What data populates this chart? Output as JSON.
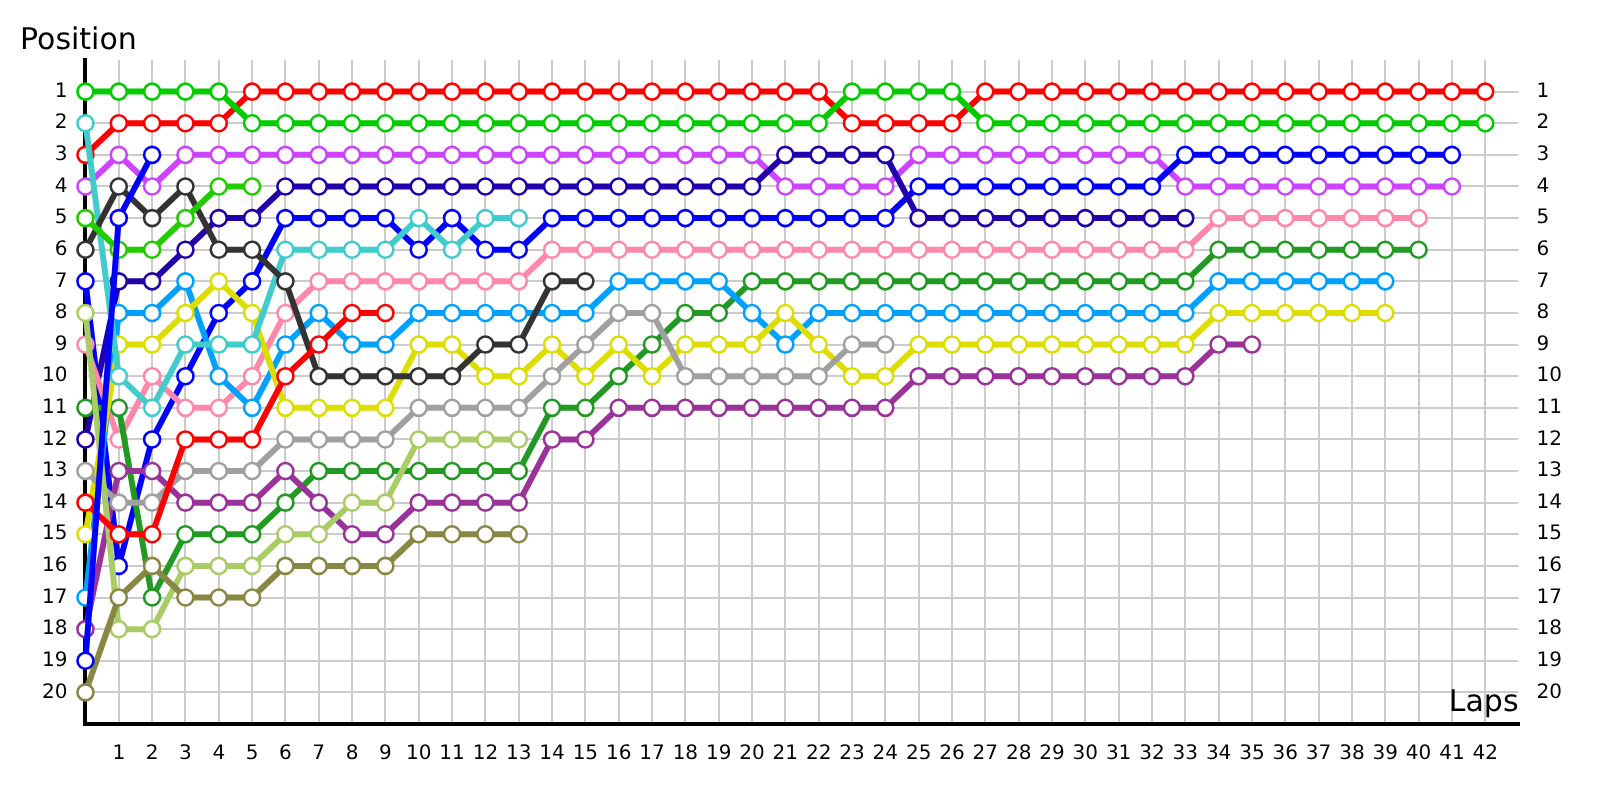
{
  "chart_data": {
    "type": "line",
    "xlabel": "Laps",
    "ylabel": "Position",
    "x": [
      0,
      1,
      2,
      3,
      4,
      5,
      6,
      7,
      8,
      9,
      10,
      11,
      12,
      13,
      14,
      15,
      16,
      17,
      18,
      19,
      20,
      21,
      22,
      23,
      24,
      25,
      26,
      27,
      28,
      29,
      30,
      31,
      32,
      33,
      34,
      35,
      36,
      37,
      38,
      39,
      40,
      41,
      42
    ],
    "xlim": [
      0,
      43
    ],
    "xticks": [
      1,
      2,
      3,
      4,
      5,
      6,
      7,
      8,
      9,
      10,
      11,
      12,
      13,
      14,
      15,
      16,
      17,
      18,
      19,
      20,
      21,
      22,
      23,
      24,
      25,
      26,
      27,
      28,
      29,
      30,
      31,
      32,
      33,
      34,
      35,
      36,
      37,
      38,
      39,
      40,
      41,
      42
    ],
    "ylim": [
      21,
      0
    ],
    "yticks": [
      1,
      2,
      3,
      4,
      5,
      6,
      7,
      8,
      9,
      10,
      11,
      12,
      13,
      14,
      15,
      16,
      17,
      18,
      19,
      20
    ],
    "y2lim": [
      21,
      0
    ],
    "y2ticks": [
      1,
      2,
      3,
      4,
      5,
      6,
      7,
      8,
      9,
      10,
      11,
      12,
      13,
      14,
      15,
      16,
      17,
      18,
      19,
      20
    ],
    "grid": true,
    "legend": false,
    "marker": "circle",
    "line_style": "solid",
    "series": [
      {
        "color": "#ff0000",
        "values": [
          3,
          2,
          2,
          2,
          2,
          1,
          1,
          1,
          1,
          1,
          1,
          1,
          1,
          1,
          1,
          1,
          1,
          1,
          1,
          1,
          1,
          1,
          1,
          2,
          2,
          2,
          2,
          1,
          1,
          1,
          1,
          1,
          1,
          1,
          1,
          1,
          1,
          1,
          1,
          1,
          1,
          1,
          1
        ]
      },
      {
        "color": "#00cc00",
        "values": [
          1,
          1,
          1,
          1,
          1,
          2,
          2,
          2,
          2,
          2,
          2,
          2,
          2,
          2,
          2,
          2,
          2,
          2,
          2,
          2,
          2,
          2,
          2,
          1,
          1,
          1,
          1,
          2,
          2,
          2,
          2,
          2,
          2,
          2,
          2,
          2,
          2,
          2,
          2,
          2,
          2,
          2,
          2
        ]
      },
      {
        "color": "#cc44ff",
        "values": [
          4,
          3,
          4,
          3,
          3,
          3,
          3,
          3,
          3,
          3,
          3,
          3,
          3,
          3,
          3,
          3,
          3,
          3,
          3,
          3,
          3,
          4,
          4,
          4,
          4,
          3,
          3,
          3,
          3,
          3,
          3,
          3,
          3,
          4,
          4,
          4,
          4,
          4,
          4,
          4,
          4,
          4,
          null
        ]
      },
      {
        "color": "#0000ff",
        "values": [
          7,
          16,
          12,
          10,
          8,
          7,
          5,
          5,
          5,
          5,
          6,
          5,
          6,
          6,
          5,
          5,
          5,
          5,
          5,
          5,
          5,
          5,
          5,
          5,
          5,
          4,
          4,
          4,
          4,
          4,
          4,
          4,
          4,
          3,
          3,
          3,
          3,
          3,
          3,
          3,
          3,
          3,
          null
        ]
      },
      {
        "color": "#2200aa",
        "values": [
          12,
          7,
          7,
          6,
          5,
          5,
          4,
          4,
          4,
          4,
          4,
          4,
          4,
          4,
          4,
          4,
          4,
          4,
          4,
          4,
          4,
          3,
          3,
          3,
          3,
          5,
          5,
          5,
          5,
          5,
          5,
          5,
          5,
          5,
          null,
          null,
          null,
          null,
          null,
          null,
          null,
          null,
          null
        ]
      },
      {
        "color": "#ff88aa",
        "values": [
          9,
          12,
          10,
          11,
          11,
          10,
          8,
          7,
          7,
          7,
          7,
          7,
          7,
          7,
          6,
          6,
          6,
          6,
          6,
          6,
          6,
          6,
          6,
          6,
          6,
          6,
          6,
          6,
          6,
          6,
          6,
          6,
          6,
          6,
          5,
          5,
          5,
          5,
          5,
          5,
          5,
          null,
          null
        ]
      },
      {
        "color": "#229922",
        "values": [
          11,
          11,
          17,
          15,
          15,
          15,
          14,
          13,
          13,
          13,
          13,
          13,
          13,
          13,
          11,
          11,
          10,
          9,
          8,
          8,
          7,
          7,
          7,
          7,
          7,
          7,
          7,
          7,
          7,
          7,
          7,
          7,
          7,
          7,
          6,
          6,
          6,
          6,
          6,
          6,
          6,
          null,
          null
        ]
      },
      {
        "color": "#00a0ff",
        "values": [
          17,
          8,
          8,
          7,
          10,
          11,
          9,
          8,
          9,
          9,
          8,
          8,
          8,
          8,
          8,
          8,
          7,
          7,
          7,
          7,
          8,
          9,
          8,
          8,
          8,
          8,
          8,
          8,
          8,
          8,
          8,
          8,
          8,
          8,
          7,
          7,
          7,
          7,
          7,
          7,
          null,
          null,
          null
        ]
      },
      {
        "color": "#dddd00",
        "values": [
          15,
          9,
          9,
          8,
          7,
          8,
          11,
          11,
          11,
          11,
          9,
          9,
          10,
          10,
          9,
          10,
          9,
          10,
          9,
          9,
          9,
          8,
          9,
          10,
          10,
          9,
          9,
          9,
          9,
          9,
          9,
          9,
          9,
          9,
          8,
          8,
          8,
          8,
          8,
          8,
          null,
          null,
          null
        ]
      },
      {
        "color": "#993399",
        "values": [
          18,
          13,
          13,
          14,
          14,
          14,
          13,
          14,
          15,
          15,
          14,
          14,
          14,
          14,
          12,
          12,
          11,
          11,
          11,
          11,
          11,
          11,
          11,
          11,
          11,
          10,
          10,
          10,
          10,
          10,
          10,
          10,
          10,
          10,
          9,
          9,
          null,
          null,
          null,
          null,
          null,
          null,
          null
        ]
      },
      {
        "color": "#a0a0a0",
        "values": [
          13,
          14,
          14,
          13,
          13,
          13,
          12,
          12,
          12,
          12,
          11,
          11,
          11,
          11,
          10,
          9,
          8,
          8,
          10,
          10,
          10,
          10,
          10,
          9,
          9,
          null,
          null,
          null,
          null,
          null,
          null,
          null,
          null,
          null,
          null,
          null,
          null,
          null,
          null,
          null,
          null,
          null,
          null
        ]
      },
      {
        "color": "#40cccc",
        "values": [
          2,
          10,
          11,
          9,
          9,
          9,
          6,
          6,
          6,
          6,
          5,
          6,
          5,
          5,
          null,
          null,
          null,
          null,
          null,
          null,
          null,
          null,
          null,
          null,
          null,
          null,
          null,
          null,
          null,
          null,
          null,
          null,
          null,
          null,
          null,
          null,
          null,
          null,
          null,
          null,
          null,
          null,
          null
        ]
      },
      {
        "color": "#333333",
        "values": [
          6,
          4,
          5,
          4,
          6,
          6,
          7,
          10,
          10,
          10,
          10,
          10,
          9,
          9,
          7,
          7,
          null,
          null,
          null,
          null,
          null,
          null,
          null,
          null,
          null,
          null,
          null,
          null,
          null,
          null,
          null,
          null,
          null,
          null,
          null,
          null,
          null,
          null,
          null,
          null,
          null,
          null,
          null
        ]
      },
      {
        "color": "#aacc66",
        "values": [
          8,
          18,
          18,
          16,
          16,
          16,
          15,
          15,
          14,
          14,
          12,
          12,
          12,
          12,
          null,
          null,
          null,
          null,
          null,
          null,
          null,
          null,
          null,
          null,
          null,
          null,
          null,
          null,
          null,
          null,
          null,
          null,
          null,
          null,
          null,
          null,
          null,
          null,
          null,
          null,
          null,
          null,
          null
        ]
      },
      {
        "color": "#888844",
        "values": [
          20,
          17,
          16,
          17,
          17,
          17,
          16,
          16,
          16,
          16,
          15,
          15,
          15,
          15,
          null,
          null,
          null,
          null,
          null,
          null,
          null,
          null,
          null,
          null,
          null,
          null,
          null,
          null,
          null,
          null,
          null,
          null,
          null,
          null,
          null,
          null,
          null,
          null,
          null,
          null,
          null,
          null,
          null
        ]
      },
      {
        "color": "#ff0000",
        "values": [
          14,
          15,
          15,
          12,
          12,
          12,
          10,
          9,
          8,
          8,
          null,
          null,
          null,
          null,
          null,
          null,
          null,
          null,
          null,
          null,
          null,
          null,
          null,
          null,
          null,
          null,
          null,
          null,
          null,
          null,
          null,
          null,
          null,
          null,
          null,
          null,
          null,
          null,
          null,
          null,
          null,
          null,
          null
        ]
      },
      {
        "color": "#22cc00",
        "values": [
          5,
          6,
          6,
          5,
          4,
          4,
          null,
          null,
          null,
          null,
          null,
          null,
          null,
          null,
          null,
          null,
          null,
          null,
          null,
          null,
          null,
          null,
          null,
          null,
          null,
          null,
          null,
          null,
          null,
          null,
          null,
          null,
          null,
          null,
          null,
          null,
          null,
          null,
          null,
          null,
          null,
          null,
          null
        ]
      },
      {
        "color": "#0000ff",
        "values": [
          19,
          5,
          3,
          null,
          null,
          null,
          null,
          null,
          null,
          null,
          null,
          null,
          null,
          null,
          null,
          null,
          null,
          null,
          null,
          null,
          null,
          null,
          null,
          null,
          null,
          null,
          null,
          null,
          null,
          null,
          null,
          null,
          null,
          null,
          null,
          null,
          null,
          null,
          null,
          null,
          null,
          null,
          null
        ]
      }
    ]
  }
}
